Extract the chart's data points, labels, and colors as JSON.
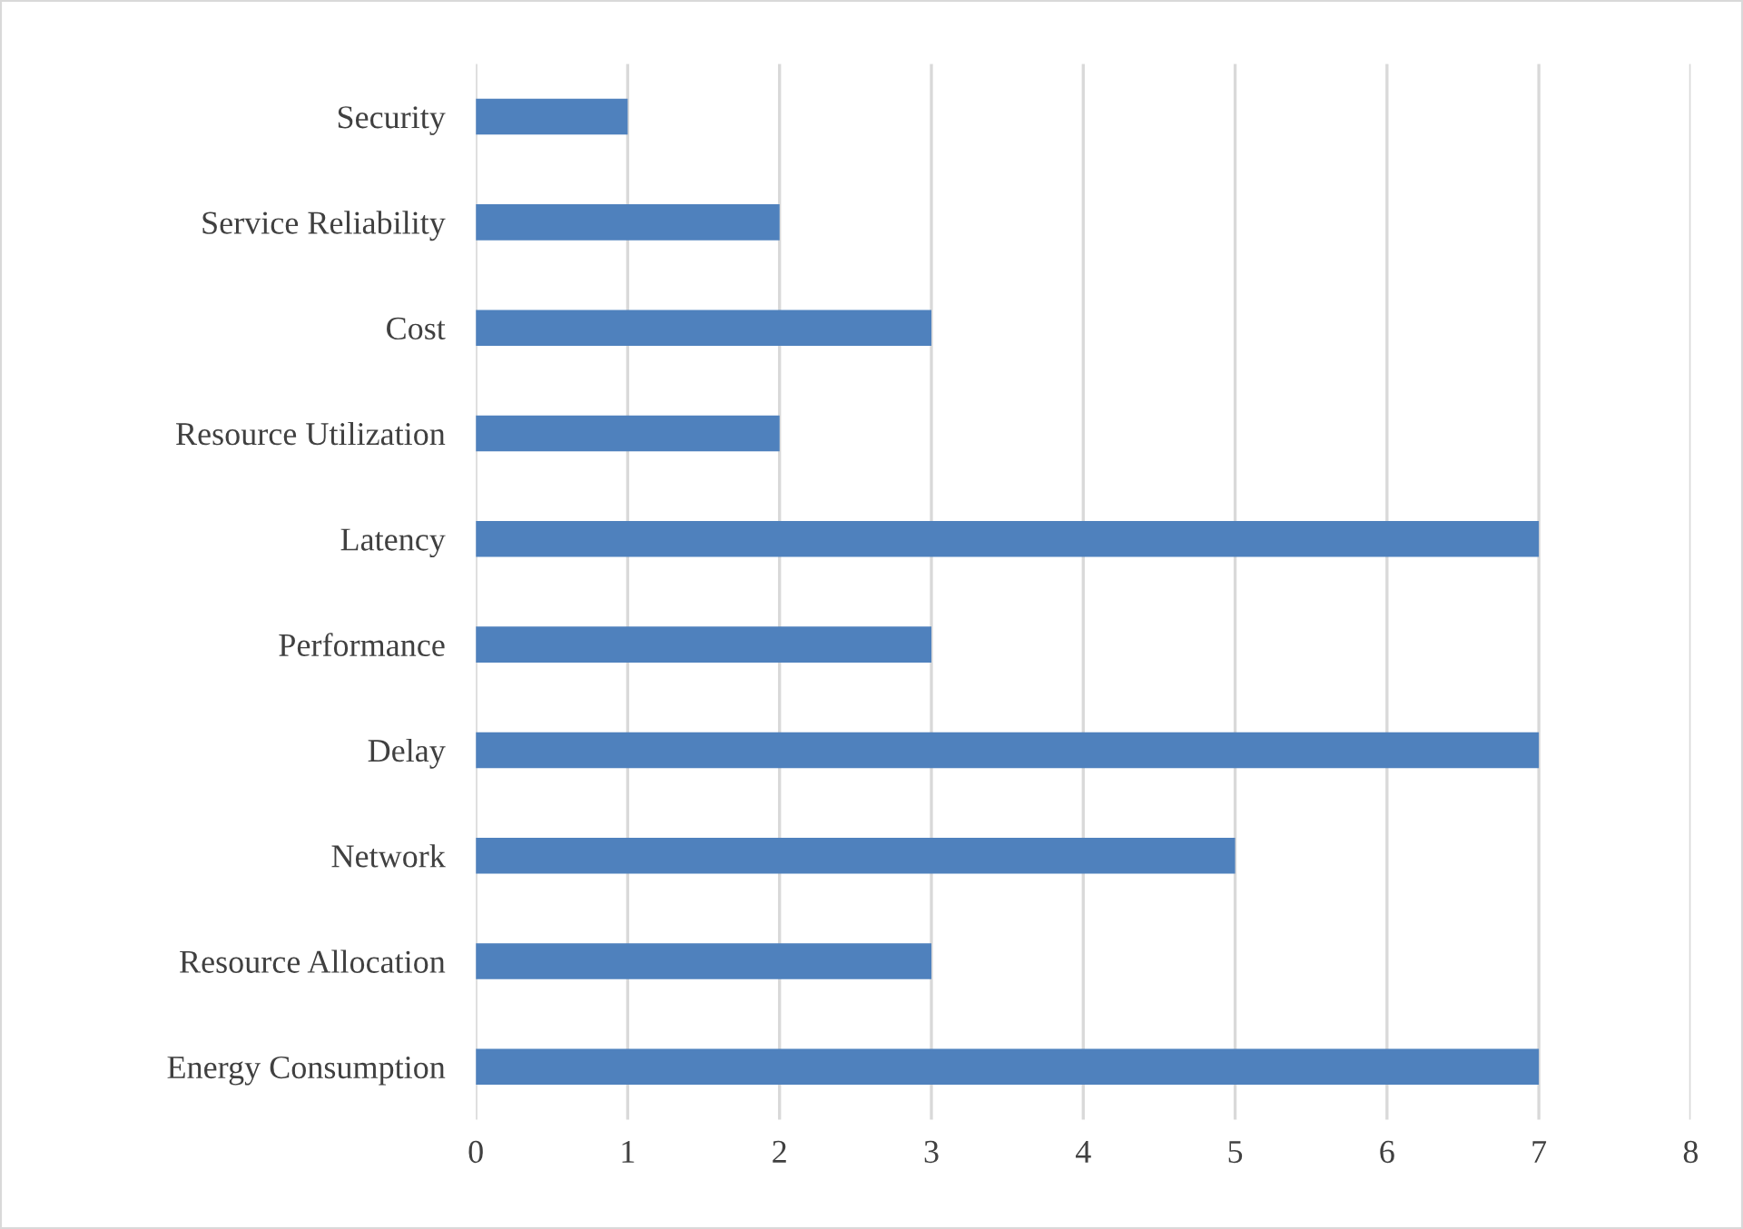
{
  "chart_data": {
    "type": "bar",
    "orientation": "horizontal",
    "categories": [
      "Security",
      "Service Reliability",
      "Cost",
      "Resource Utilization",
      "Latency",
      "Performance",
      "Delay",
      "Network",
      "Resource Allocation",
      "Energy Consumption"
    ],
    "values": [
      1,
      2,
      3,
      2,
      7,
      3,
      7,
      5,
      3,
      7
    ],
    "color": "#4f81bd",
    "xlim": [
      0,
      8
    ],
    "xticks": [
      0,
      1,
      2,
      3,
      4,
      5,
      6,
      7,
      8
    ],
    "grid": "x",
    "legend": false
  }
}
